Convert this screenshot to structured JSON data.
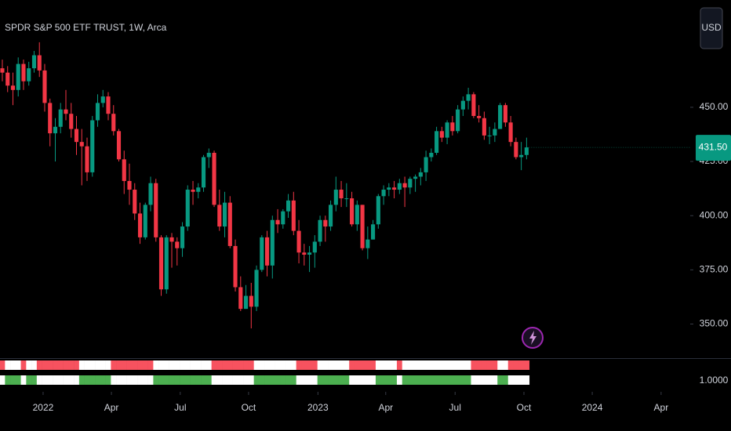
{
  "chart_data": {
    "type": "candlestick",
    "title": "SPDR S&P 500 ETF TRUST, 1W, Arca",
    "currency": "USD",
    "up_color": "#089981",
    "down_color": "#f23645",
    "categories": [
      null,
      null,
      null,
      null,
      null,
      null,
      null,
      null,
      null,
      null,
      null,
      null,
      null,
      null,
      null,
      null,
      null,
      null,
      null,
      null,
      null,
      null,
      null,
      null,
      null,
      null,
      null,
      null,
      null,
      null,
      null,
      null,
      null,
      null,
      null,
      null,
      null,
      null,
      null,
      null,
      null,
      null,
      null,
      null,
      null,
      null,
      null,
      null,
      null,
      null,
      null,
      null,
      null,
      null,
      null,
      null,
      null,
      null,
      null,
      null,
      null,
      null,
      null,
      null,
      null,
      null,
      null,
      null,
      null,
      null,
      null,
      null,
      null,
      null,
      null,
      null,
      null,
      null,
      null,
      null,
      null,
      null,
      null,
      null,
      null,
      null,
      null,
      null,
      null,
      null,
      null,
      null,
      null,
      null,
      null,
      null,
      null,
      null,
      null,
      null
    ],
    "open": [
      468,
      466,
      460,
      458,
      470,
      462,
      468,
      474,
      467,
      452,
      438,
      441,
      449,
      447,
      440,
      434,
      432,
      420,
      444,
      452,
      455,
      447,
      439,
      426,
      416,
      412,
      401,
      390,
      405,
      415,
      390,
      366,
      390,
      388,
      385,
      395,
      412,
      411,
      413,
      427,
      429,
      405,
      395,
      406,
      386,
      367,
      357,
      363,
      358,
      375,
      390,
      377,
      398,
      396,
      402,
      407,
      393,
      383,
      382,
      383,
      388,
      398,
      395,
      405,
      412,
      408,
      408,
      396,
      405,
      385,
      389,
      396,
      409,
      412,
      413,
      412,
      415,
      413,
      417,
      418,
      420,
      427,
      429,
      439,
      436,
      443,
      439,
      449,
      453,
      456,
      446,
      445,
      437,
      437,
      440,
      451,
      443,
      434,
      427,
      428
    ],
    "high": [
      472,
      469,
      466,
      473,
      472,
      471,
      476,
      480,
      470,
      454,
      445,
      452,
      458,
      452,
      446,
      440,
      436,
      446,
      456,
      458,
      457,
      451,
      440,
      430,
      424,
      415,
      406,
      406,
      418,
      417,
      391,
      391,
      392,
      390,
      397,
      414,
      416,
      415,
      428,
      431,
      430,
      412,
      411,
      409,
      389,
      372,
      368,
      369,
      377,
      391,
      393,
      400,
      403,
      403,
      410,
      411,
      398,
      387,
      386,
      391,
      400,
      400,
      407,
      418,
      416,
      415,
      411,
      407,
      405,
      395,
      398,
      410,
      414,
      415,
      416,
      417,
      418,
      418,
      419,
      422,
      430,
      431,
      441,
      441,
      444,
      446,
      451,
      455,
      459,
      457,
      451,
      448,
      441,
      443,
      452,
      452,
      446,
      436,
      434,
      436
    ],
    "low": [
      462,
      457,
      451,
      455,
      458,
      460,
      466,
      464,
      448,
      432,
      425,
      438,
      444,
      436,
      428,
      414,
      416,
      418,
      441,
      450,
      444,
      437,
      425,
      410,
      405,
      398,
      387,
      389,
      402,
      388,
      363,
      364,
      376,
      377,
      381,
      393,
      405,
      408,
      411,
      422,
      404,
      393,
      390,
      385,
      365,
      356,
      357,
      348,
      356,
      374,
      372,
      371,
      392,
      394,
      399,
      391,
      378,
      377,
      374,
      376,
      386,
      388,
      393,
      402,
      404,
      404,
      395,
      393,
      384,
      380,
      389,
      394,
      405,
      409,
      408,
      410,
      404,
      410,
      411,
      414,
      416,
      425,
      428,
      434,
      433,
      437,
      438,
      446,
      449,
      445,
      443,
      435,
      433,
      434,
      440,
      441,
      432,
      426,
      421,
      426
    ],
    "close": [
      466,
      460,
      458,
      470,
      462,
      468,
      474,
      467,
      452,
      438,
      441,
      449,
      447,
      440,
      434,
      432,
      420,
      444,
      452,
      455,
      447,
      439,
      426,
      416,
      412,
      401,
      390,
      405,
      415,
      390,
      366,
      390,
      388,
      385,
      395,
      412,
      411,
      413,
      427,
      429,
      405,
      395,
      406,
      386,
      367,
      357,
      363,
      358,
      375,
      390,
      377,
      398,
      396,
      402,
      407,
      393,
      383,
      382,
      383,
      388,
      398,
      395,
      405,
      412,
      408,
      408,
      396,
      405,
      385,
      389,
      396,
      409,
      412,
      413,
      412,
      415,
      413,
      417,
      418,
      420,
      427,
      429,
      439,
      436,
      443,
      439,
      449,
      453,
      456,
      446,
      445,
      437,
      437,
      440,
      451,
      443,
      434,
      427,
      428,
      431.5
    ],
    "last_price": {
      "value": 431.5,
      "label": "431.50"
    },
    "ylim": [
      335,
      499.5
    ],
    "yticks": [
      {
        "value": 350,
        "label": "350.00"
      },
      {
        "value": 375,
        "label": "375.00"
      },
      {
        "value": 400,
        "label": "400.00"
      },
      {
        "value": 425,
        "label": "425.00"
      },
      {
        "value": 450,
        "label": "450.00"
      }
    ],
    "xlim": [
      -0.44,
      129.9
    ],
    "xticks": [
      {
        "value": 7.7,
        "label": "2022"
      },
      {
        "value": 20.6,
        "label": "Apr"
      },
      {
        "value": 33.6,
        "label": "Jul"
      },
      {
        "value": 46.5,
        "label": "Oct"
      },
      {
        "value": 59.6,
        "label": "2023"
      },
      {
        "value": 72.4,
        "label": "Apr"
      },
      {
        "value": 85.5,
        "label": "Jul"
      },
      {
        "value": 98.5,
        "label": "Oct"
      },
      {
        "value": 111.4,
        "label": "2024"
      },
      {
        "value": 124.4,
        "label": "Apr"
      }
    ],
    "indicator": {
      "ytick": {
        "value": 1,
        "label": "1.0000"
      },
      "rows": [
        {
          "color": "#f7525f",
          "values": [
            1,
            0,
            0,
            0,
            1,
            0,
            0,
            1,
            1,
            1,
            1,
            1,
            1,
            1,
            1,
            0,
            0,
            0,
            0,
            0,
            0,
            1,
            1,
            1,
            1,
            1,
            1,
            1,
            1,
            0,
            0,
            0,
            0,
            0,
            0,
            0,
            0,
            0,
            0,
            0,
            1,
            1,
            1,
            1,
            1,
            1,
            1,
            1,
            0,
            0,
            0,
            0,
            0,
            0,
            0,
            0,
            1,
            1,
            1,
            1,
            0,
            0,
            0,
            0,
            0,
            0,
            1,
            1,
            1,
            1,
            1,
            0,
            0,
            0,
            0,
            1,
            0,
            0,
            0,
            0,
            0,
            0,
            0,
            0,
            0,
            0,
            0,
            0,
            0,
            1,
            1,
            1,
            1,
            1,
            0,
            0,
            1,
            1,
            1,
            1
          ]
        },
        {
          "color": "#4caf50",
          "values": [
            0,
            1,
            1,
            1,
            0,
            1,
            1,
            0,
            0,
            0,
            0,
            0,
            0,
            0,
            0,
            1,
            1,
            1,
            1,
            1,
            1,
            0,
            0,
            0,
            0,
            0,
            0,
            0,
            0,
            1,
            1,
            1,
            1,
            1,
            1,
            1,
            1,
            1,
            1,
            1,
            0,
            0,
            0,
            0,
            0,
            0,
            0,
            0,
            1,
            1,
            1,
            1,
            1,
            1,
            1,
            1,
            0,
            0,
            0,
            0,
            1,
            1,
            1,
            1,
            1,
            1,
            0,
            0,
            0,
            0,
            0,
            1,
            1,
            1,
            1,
            0,
            1,
            1,
            1,
            1,
            1,
            1,
            1,
            1,
            1,
            1,
            1,
            1,
            1,
            0,
            0,
            0,
            0,
            0,
            1,
            1,
            0,
            0,
            0,
            0
          ]
        }
      ]
    }
  }
}
